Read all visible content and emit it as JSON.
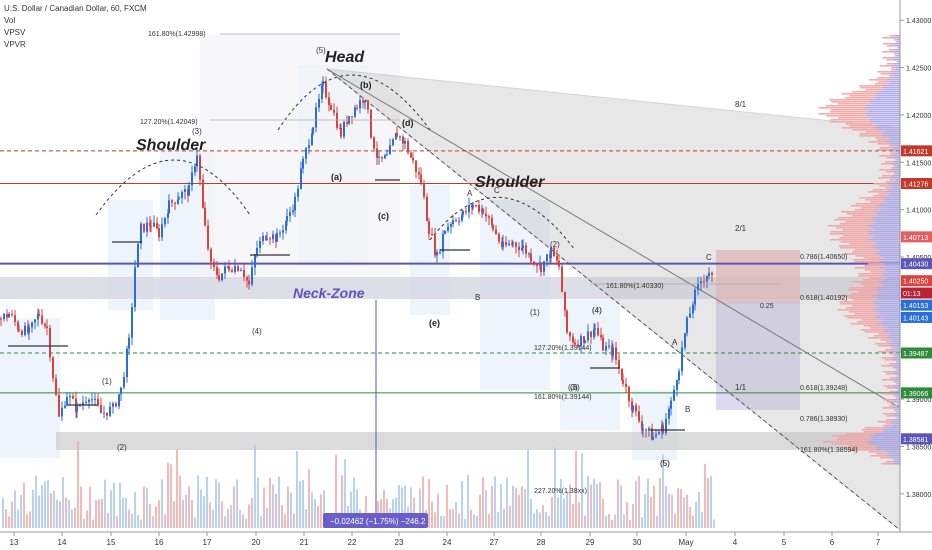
{
  "header": {
    "symbol_line": "U.S. Dollar / Canadian Dollar, 60, FXCM",
    "indicators": [
      "Vol",
      "VPSV",
      "VPVR"
    ]
  },
  "annotations": {
    "head": "Head",
    "shoulder_left": "Shoulder",
    "shoulder_right": "Shoulder",
    "neck_zone": "Neck-Zone",
    "wave_labels": [
      "(5)",
      "(b)",
      "(d)",
      "(a)",
      "(c)",
      "(e)",
      "(3)",
      "(4)",
      "(1)",
      "(2)",
      "A",
      "B",
      "C",
      "(3)",
      "(4)",
      "(5)",
      "(1)",
      "(2)",
      "(3)",
      "(4)",
      "(5)",
      "A",
      "B",
      "C",
      "8/1",
      "2/1",
      "1/1"
    ]
  },
  "fib_labels": [
    "161.80%(1.42998)",
    "127.20%(1.42049)",
    "161.80%(1.40330)",
    "127.20%(1.39144)",
    "161.80%(1.39144)",
    "227.20%(1.38xx)",
    "0.786(1.40650)",
    "0.618(1.40192)",
    "0.25",
    "0.618(1.39248)",
    "0.786(1.38930)",
    "161.80%(1.38594)"
  ],
  "measure_label": "−0.02462 (−1.75%) −246.2",
  "colors": {
    "neck_band": "#c9c9d6",
    "neck_line": "#5a56b8",
    "red_level": "#c0392b",
    "green_level": "#2e8b3a",
    "up_candle": "#2b6fd6",
    "down_candle": "#d8433f",
    "wedge": "#9a9a9a",
    "target_purple": "#b9b0e0",
    "target_red": "#f3b2b2"
  },
  "chart_data": {
    "type": "candlestick",
    "title": "U.S. Dollar / Canadian Dollar, 60, FXCM",
    "x_tick_labels": [
      "13",
      "14",
      "15",
      "16",
      "17",
      "20",
      "21",
      "22",
      "23",
      "24",
      "27",
      "28",
      "29",
      "30",
      "May",
      "4",
      "5",
      "6",
      "7"
    ],
    "y_tick_labels": [
      "1.43000",
      "1.42500",
      "1.42000",
      "1.41500",
      "1.41000",
      "1.40500",
      "1.40000",
      "1.39500",
      "1.39000",
      "1.38500",
      "1.38000"
    ],
    "ylim": [
      1.3765,
      1.4315
    ],
    "price_badges": [
      {
        "value": "1.41621",
        "price": 1.41621,
        "color": "#c0392b"
      },
      {
        "value": "1.41276",
        "price": 1.41276,
        "color": "#c0392b"
      },
      {
        "value": "1.40713",
        "price": 1.40713,
        "color": "#e35f5f"
      },
      {
        "value": "1.40430",
        "price": 1.4043,
        "color": "#5a56b8"
      },
      {
        "value": "1.40250",
        "price": 1.4025,
        "color": "#d8433f"
      },
      {
        "value": "01:13",
        "price": 1.4012,
        "color": "#b23"
      },
      {
        "value": "1.40153",
        "price": 1.39992,
        "color": "#2b6fd6"
      },
      {
        "value": "1.40143",
        "price": 1.39862,
        "color": "#2b6fd6"
      },
      {
        "value": "1.39487",
        "price": 1.39487,
        "color": "#2e8b3a"
      },
      {
        "value": "1.39066",
        "price": 1.39066,
        "color": "#2e8b3a"
      },
      {
        "value": "1.38581",
        "price": 1.38581,
        "color": "#5a56b8"
      }
    ],
    "horizontal_levels": [
      {
        "price": 1.41621,
        "style": "dashed",
        "color": "#c0392b"
      },
      {
        "price": 1.41276,
        "style": "solid",
        "color": "#c0392b"
      },
      {
        "price": 1.4043,
        "style": "solid",
        "color": "#5a56b8"
      },
      {
        "price": 1.39487,
        "style": "dashed",
        "color": "#2e8b3a"
      },
      {
        "price": 1.39066,
        "style": "solid",
        "color": "#2e8b3a"
      }
    ],
    "series": [
      {
        "name": "price path",
        "points": [
          [
            0,
            1.3985
          ],
          [
            8,
            1.399
          ],
          [
            18,
            1.3975
          ],
          [
            28,
            1.397
          ],
          [
            38,
            1.399
          ],
          [
            46,
            1.3975
          ],
          [
            52,
            1.3925
          ],
          [
            58,
            1.388
          ],
          [
            66,
            1.3905
          ],
          [
            76,
            1.389
          ],
          [
            88,
            1.3905
          ],
          [
            100,
            1.3885
          ],
          [
            112,
            1.389
          ],
          [
            120,
            1.391
          ],
          [
            128,
            1.396
          ],
          [
            134,
            1.404
          ],
          [
            140,
            1.408
          ],
          [
            150,
            1.4085
          ],
          [
            158,
            1.4075
          ],
          [
            168,
            1.4105
          ],
          [
            178,
            1.4115
          ],
          [
            188,
            1.412
          ],
          [
            196,
            1.416
          ],
          [
            204,
            1.408
          ],
          [
            210,
            1.404
          ],
          [
            218,
            1.403
          ],
          [
            228,
            1.404
          ],
          [
            240,
            1.404
          ],
          [
            248,
            1.402
          ],
          [
            256,
            1.406
          ],
          [
            266,
            1.4075
          ],
          [
            276,
            1.407
          ],
          [
            286,
            1.409
          ],
          [
            294,
            1.411
          ],
          [
            302,
            1.415
          ],
          [
            312,
            1.419
          ],
          [
            322,
            1.423
          ],
          [
            330,
            1.421
          ],
          [
            340,
            1.418
          ],
          [
            348,
            1.42
          ],
          [
            356,
            1.421
          ],
          [
            364,
            1.422
          ],
          [
            370,
            1.418
          ],
          [
            378,
            1.415
          ],
          [
            386,
            1.4155
          ],
          [
            396,
            1.418
          ],
          [
            404,
            1.417
          ],
          [
            412,
            1.415
          ],
          [
            420,
            1.413
          ],
          [
            428,
            1.408
          ],
          [
            436,
            1.405
          ],
          [
            444,
            1.408
          ],
          [
            452,
            1.409
          ],
          [
            462,
            1.4095
          ],
          [
            472,
            1.4105
          ],
          [
            482,
            1.41
          ],
          [
            492,
            1.408
          ],
          [
            502,
            1.406
          ],
          [
            512,
            1.4065
          ],
          [
            522,
            1.406
          ],
          [
            530,
            1.405
          ],
          [
            540,
            1.404
          ],
          [
            550,
            1.4055
          ],
          [
            558,
            1.404
          ],
          [
            566,
            1.397
          ],
          [
            574,
            1.396
          ],
          [
            584,
            1.3965
          ],
          [
            594,
            1.3975
          ],
          [
            602,
            1.3955
          ],
          [
            612,
            1.395
          ],
          [
            622,
            1.392
          ],
          [
            632,
            1.389
          ],
          [
            642,
            1.387
          ],
          [
            652,
            1.386
          ],
          [
            662,
            1.387
          ],
          [
            670,
            1.3895
          ],
          [
            678,
            1.3935
          ],
          [
            686,
            1.398
          ],
          [
            694,
            1.401
          ],
          [
            700,
            1.4025
          ],
          [
            708,
            1.4035
          ],
          [
            714,
            1.402
          ]
        ]
      },
      {
        "name": "volume",
        "values": []
      }
    ]
  }
}
